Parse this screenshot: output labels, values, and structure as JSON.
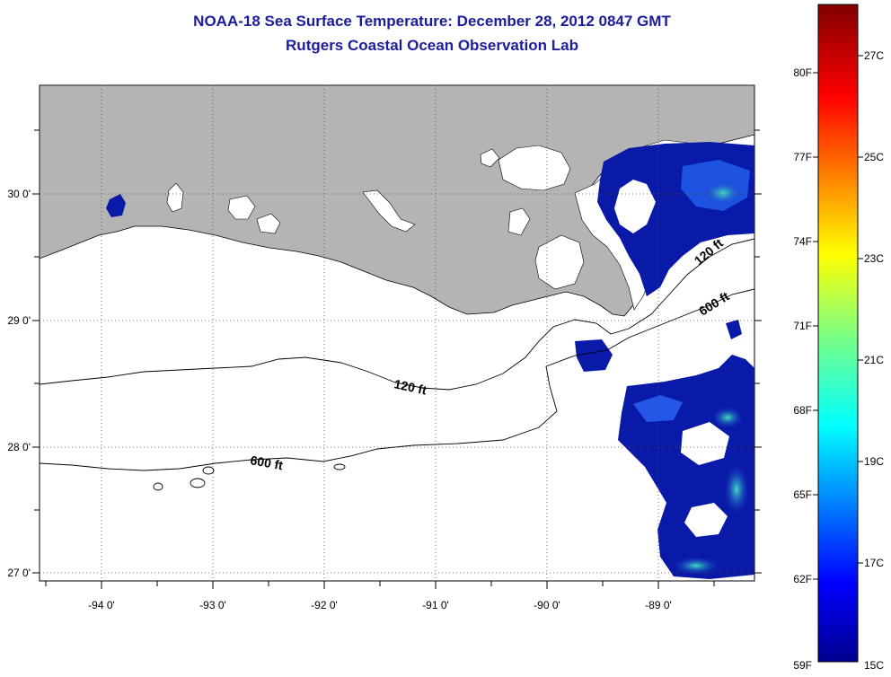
{
  "header": {
    "title": "NOAA-18 Sea Surface Temperature:  December 28, 2012 0847 GMT",
    "subtitle": "Rutgers Coastal Ocean Observation Lab"
  },
  "map": {
    "lat_labels": [
      "30 0'",
      "29 0'",
      "28 0'",
      "27 0'"
    ],
    "lon_labels": [
      "-94 0'",
      "-93 0'",
      "-92 0'",
      "-91 0'",
      "-90 0'",
      "-89 0'"
    ],
    "contour_labels": [
      "120 ft",
      "600 ft",
      "120 ft",
      "600 ft"
    ],
    "colors": {
      "land": "#b4b4b4",
      "ocean_blank": "#ffffff",
      "sst_cold": "#0a1aa8"
    }
  },
  "colorbar": {
    "fahrenheit_labels": [
      "80F",
      "77F",
      "74F",
      "71F",
      "68F",
      "65F",
      "62F",
      "59F"
    ],
    "celsius_labels": [
      "27C",
      "25C",
      "23C",
      "21C",
      "19C",
      "17C",
      "15C"
    ],
    "range_c": [
      15,
      28.5
    ]
  }
}
